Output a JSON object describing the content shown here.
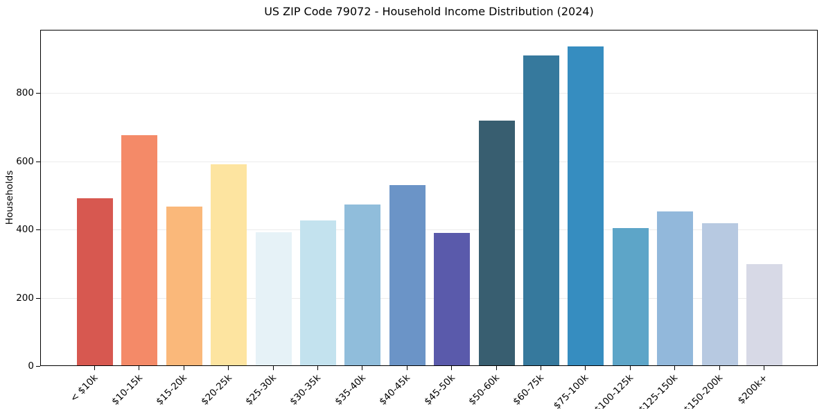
{
  "chart_data": {
    "type": "bar",
    "title": "US ZIP Code 79072 - Household Income Distribution (2024)",
    "xlabel": "",
    "ylabel": "Households",
    "categories": [
      "< $10k",
      "$10-15k",
      "$15-20k",
      "$20-25k",
      "$25-30k",
      "$30-35k",
      "$35-40k",
      "$40-45k",
      "$45-50k",
      "$50-60k",
      "$60-75k",
      "$75-100k",
      "$100-125k",
      "$125-150k",
      "$150-200k",
      "$200k+"
    ],
    "values": [
      490,
      675,
      465,
      588,
      390,
      425,
      472,
      528,
      388,
      717,
      908,
      934,
      402,
      450,
      417,
      296
    ],
    "bar_colors": [
      "#d75850",
      "#f48a68",
      "#fab87a",
      "#fde4a0",
      "#e6f2f7",
      "#c3e2ee",
      "#90bddb",
      "#6b94c7",
      "#5a5aab",
      "#385e70",
      "#36799d",
      "#368dc0",
      "#5da5c8",
      "#92b8db",
      "#b7c9e1",
      "#d7d9e6"
    ],
    "yticks": [
      "0",
      "200",
      "400",
      "600",
      "800"
    ],
    "ylim": [
      0,
      985
    ],
    "grid": "horizontal",
    "gridline_color": "#ebebeb",
    "legend": "none",
    "background": "#ffffff",
    "spine_color": "#000000",
    "text_color": "#000000"
  }
}
